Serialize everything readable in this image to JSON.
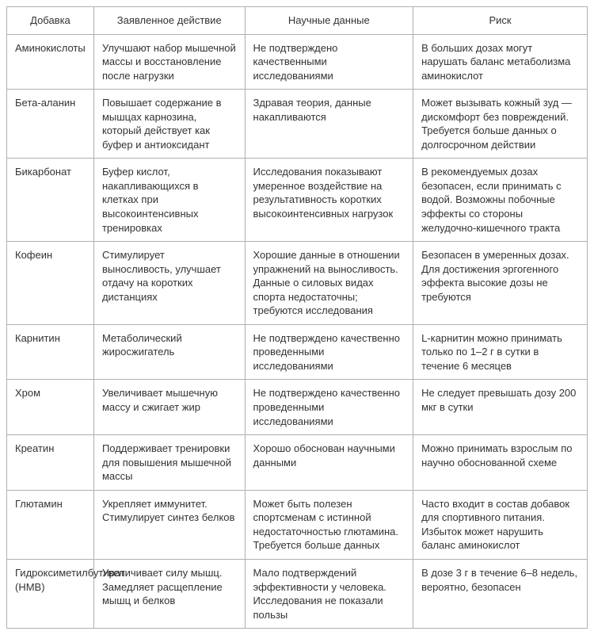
{
  "table": {
    "columns": [
      "Добавка",
      "Заявленное действие",
      "Научные данные",
      "Риск"
    ],
    "column_widths": [
      "15%",
      "26%",
      "29%",
      "30%"
    ],
    "rows": [
      [
        "Аминокислоты",
        "Улучшают набор мышечной массы и восстановление после нагрузки",
        "Не подтверждено качественными исследованиями",
        "В больших дозах могут нарушать баланс метаболизма аминокислот"
      ],
      [
        "Бета-аланин",
        "Повышает содержание в мышцах карнозина, который действует как буфер и антиоксидант",
        "Здравая теория, данные накапливаются",
        "Может вызывать кожный зуд — дискомфорт без повреждений. Требуется больше данных о долгосрочном действии"
      ],
      [
        "Бикарбонат",
        "Буфер кислот, накапливающихся в клетках при высокоинтенсивных тренировках",
        "Исследования показывают умеренное воздействие на результативность коротких высокоинтенсивных нагрузок",
        "В рекомендуемых дозах безопасен, если принимать с водой. Возможны побочные эффекты со стороны желудочно-кишечного тракта"
      ],
      [
        "Кофеин",
        "Стимулирует выносливость, улучшает отдачу на коротких дистанциях",
        "Хорошие данные в отношении упражнений на выносливость. Данные о силовых видах спорта недостаточны; требуются исследования",
        "Безопасен в умеренных дозах. Для достижения эргогенного эффекта высокие дозы не требуются"
      ],
      [
        "Карнитин",
        "Метаболический жиросжигатель",
        "Не подтверждено качественно проведенными исследованиями",
        "L-карнитин можно принимать только по 1–2 г в сутки в течение 6 месяцев"
      ],
      [
        "Хром",
        "Увеличивает мышечную массу и сжигает жир",
        "Не подтверждено качественно проведенными исследованиями",
        "Не следует превышать дозу 200 мкг в сутки"
      ],
      [
        "Креатин",
        "Поддерживает тренировки для повышения мышечной массы",
        "Хорошо обоснован научными данными",
        "Можно принимать взрослым по научно обоснованной схеме"
      ],
      [
        "Глютамин",
        "Укрепляет иммунитет. Стимулирует синтез белков",
        "Может быть полезен спортсменам с истинной недостаточностью глютамина. Требуется больше данных",
        "Часто входит в состав добавок для спортивного питания. Избыток может нарушить баланс аминокислот"
      ],
      [
        "Гидроксиметилбутират (HMB)",
        "Увеличивает силу мышц. Замедляет расщепление мышц и белков",
        "Мало подтверждений эффективности у человека. Исследования не показали пользы",
        "В дозе 3 г в течение 6–8 недель, вероятно, безопасен"
      ]
    ],
    "header_fontsize": 13,
    "cell_fontsize": 13,
    "border_color": "#b0b0b0",
    "background_color": "#ffffff",
    "text_color": "#333333"
  }
}
